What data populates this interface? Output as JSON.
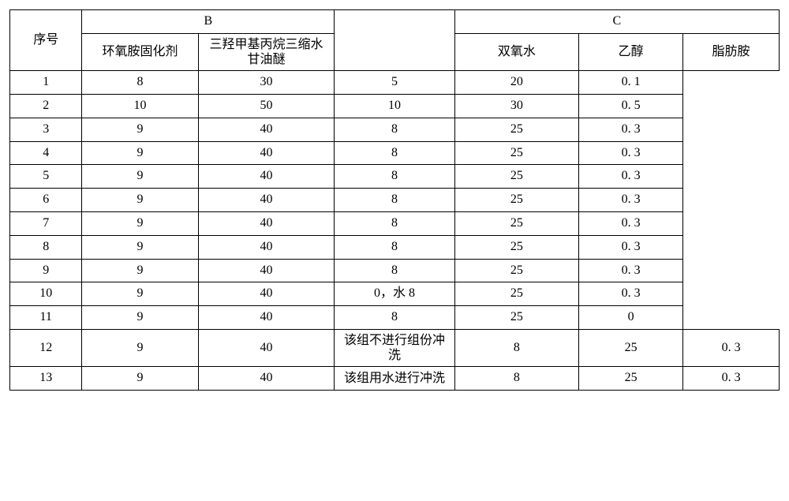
{
  "columns": {
    "seq_header": "序号",
    "group_b": "B",
    "group_c": "C",
    "b_sub1": "环氧胺固化剂",
    "b_sub2": "三羟甲基丙烷三缩水甘油醚",
    "c_sub1": "双氧水",
    "c_sub2": "乙醇",
    "c_sub3": "脂肪胺"
  },
  "col_widths": {
    "seq": 90,
    "b1": 145,
    "b2": 170,
    "mid": 150,
    "c1": 155,
    "c2": 130,
    "c3": 120
  },
  "rows": [
    {
      "seq": "1",
      "b1": "8",
      "b2": "30",
      "mid": "",
      "c1": "5",
      "c2": "20",
      "c3": "0. 1"
    },
    {
      "seq": "2",
      "b1": "10",
      "b2": "50",
      "mid": "",
      "c1": "10",
      "c2": "30",
      "c3": "0. 5"
    },
    {
      "seq": "3",
      "b1": "9",
      "b2": "40",
      "mid": "",
      "c1": "8",
      "c2": "25",
      "c3": "0. 3"
    },
    {
      "seq": "4",
      "b1": "9",
      "b2": "40",
      "mid": "",
      "c1": "8",
      "c2": "25",
      "c3": "0. 3"
    },
    {
      "seq": "5",
      "b1": "9",
      "b2": "40",
      "mid": "",
      "c1": "8",
      "c2": "25",
      "c3": "0. 3"
    },
    {
      "seq": "6",
      "b1": "9",
      "b2": "40",
      "mid": "",
      "c1": "8",
      "c2": "25",
      "c3": "0. 3"
    },
    {
      "seq": "7",
      "b1": "9",
      "b2": "40",
      "mid": "",
      "c1": "8",
      "c2": "25",
      "c3": "0. 3"
    },
    {
      "seq": "8",
      "b1": "9",
      "b2": "40",
      "mid": "",
      "c1": "8",
      "c2": "25",
      "c3": "0. 3"
    },
    {
      "seq": "9",
      "b1": "9",
      "b2": "40",
      "mid": "",
      "c1": "8",
      "c2": "25",
      "c3": "0. 3"
    },
    {
      "seq": "10",
      "b1": "9",
      "b2": "40",
      "mid": "",
      "c1": "0，水 8",
      "c2": "25",
      "c3": "0. 3"
    },
    {
      "seq": "11",
      "b1": "9",
      "b2": "40",
      "mid": "",
      "c1": "8",
      "c2": "25",
      "c3": "0"
    },
    {
      "seq": "12",
      "b1": "9",
      "b2": "40",
      "mid": "该组不进行组份冲洗",
      "c1": "8",
      "c2": "25",
      "c3": "0. 3"
    },
    {
      "seq": "13",
      "b1": "9",
      "b2": "40",
      "mid": "该组用水进行冲洗",
      "c1": "8",
      "c2": "25",
      "c3": "0. 3"
    }
  ]
}
